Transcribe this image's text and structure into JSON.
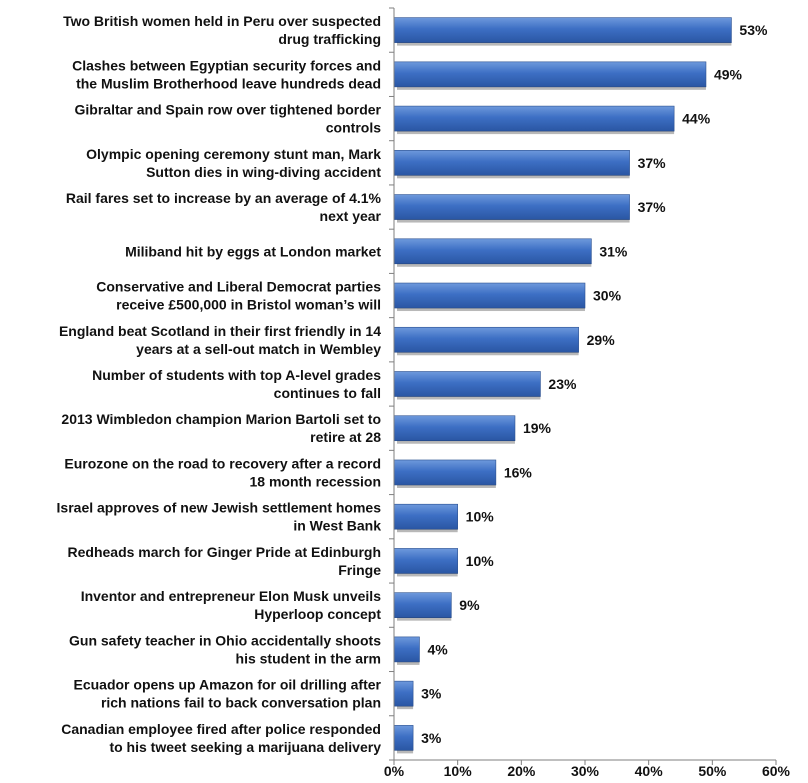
{
  "chart_data": {
    "type": "bar",
    "orientation": "horizontal",
    "title": "",
    "xlabel": "",
    "ylabel": "",
    "categories": [
      [
        "Two British women held in Peru over suspected",
        "drug trafficking"
      ],
      [
        "Clashes between Egyptian security forces and",
        "the Muslim Brotherhood leave hundreds dead"
      ],
      [
        "Gibraltar and Spain row over tightened border",
        "controls"
      ],
      [
        "Olympic opening ceremony stunt man, Mark",
        "Sutton dies in wing-diving accident"
      ],
      [
        "Rail fares set to increase by an average of 4.1%",
        "next year"
      ],
      [
        "Miliband hit by eggs at London market"
      ],
      [
        "Conservative and Liberal Democrat parties",
        "receive £500,000 in Bristol woman’s will"
      ],
      [
        "England beat Scotland in their first friendly in 14",
        "years at a sell-out match in Wembley"
      ],
      [
        "Number of students with top A-level grades",
        "continues to fall"
      ],
      [
        "2013 Wimbledon champion Marion Bartoli set to",
        "retire at 28"
      ],
      [
        "Eurozone on the road to recovery after a record",
        "18 month recession"
      ],
      [
        "Israel approves of new Jewish settlement homes",
        "in West Bank"
      ],
      [
        "Redheads march for Ginger Pride at Edinburgh",
        "Fringe"
      ],
      [
        "Inventor and entrepreneur Elon Musk unveils",
        "Hyperloop concept"
      ],
      [
        "Gun safety teacher in Ohio accidentally shoots",
        "his student in the arm"
      ],
      [
        "Ecuador opens up Amazon for oil drilling after",
        "rich nations fail to back conversation plan"
      ],
      [
        "Canadian employee fired after police responded",
        "to his tweet seeking a marijuana delivery"
      ]
    ],
    "values": [
      53,
      49,
      44,
      37,
      37,
      31,
      30,
      29,
      23,
      19,
      16,
      10,
      10,
      9,
      4,
      3,
      3
    ],
    "value_labels": [
      "53%",
      "49%",
      "44%",
      "37%",
      "37%",
      "31%",
      "30%",
      "29%",
      "23%",
      "19%",
      "16%",
      "10%",
      "10%",
      "9%",
      "4%",
      "3%",
      "3%"
    ],
    "xlim": [
      0,
      60
    ],
    "xticks": [
      0,
      10,
      20,
      30,
      40,
      50,
      60
    ],
    "xtick_labels": [
      "0%",
      "10%",
      "20%",
      "30%",
      "40%",
      "50%",
      "60%"
    ],
    "grid": false,
    "legend": "none",
    "bar_color": "#3d6fc4"
  }
}
